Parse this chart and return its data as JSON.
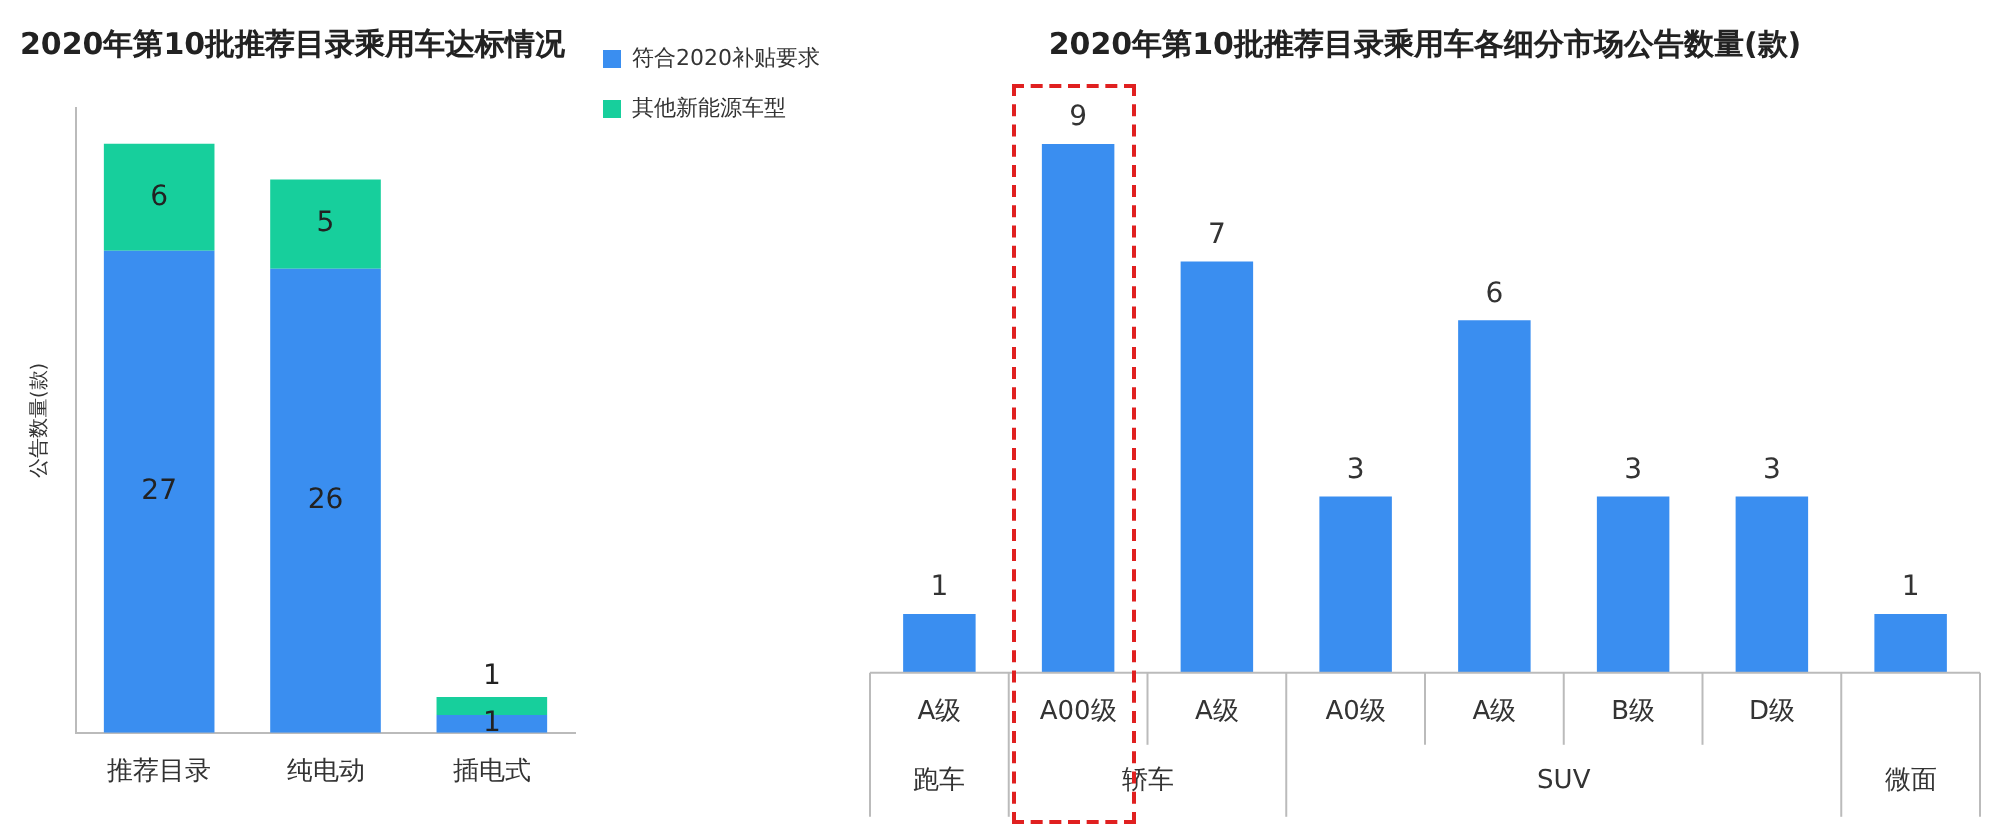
{
  "chart_data": [
    {
      "type": "bar",
      "title": "2020年第10批推荐目录乘用车达标情况",
      "ylabel": "公告数量(款)",
      "categories": [
        "推荐目录",
        "纯电动",
        "插电式"
      ],
      "stacked": true,
      "data_labels": true,
      "legend": "top right",
      "grid": false,
      "series": [
        {
          "name": "符合2020补贴要求",
          "color": "#3a8ef0",
          "values": [
            27,
            26,
            1
          ]
        },
        {
          "name": "其他新能源车型",
          "color": "#17cf9c",
          "values": [
            6,
            5,
            1
          ]
        }
      ]
    },
    {
      "type": "bar",
      "title": "2020年第10批推荐目录乘用车各细分市场公告数量(款)",
      "categories": [
        "A级",
        "A00级",
        "A级",
        "A0级",
        "A级",
        "B级",
        "D级",
        null
      ],
      "values": [
        1,
        9,
        7,
        3,
        6,
        3,
        3,
        1
      ],
      "color": "#3a8ef0",
      "data_labels": true,
      "grid": false,
      "legend": false,
      "annotations": [
        "跑车",
        "轿车",
        "SUV",
        "微面"
      ]
    }
  ]
}
